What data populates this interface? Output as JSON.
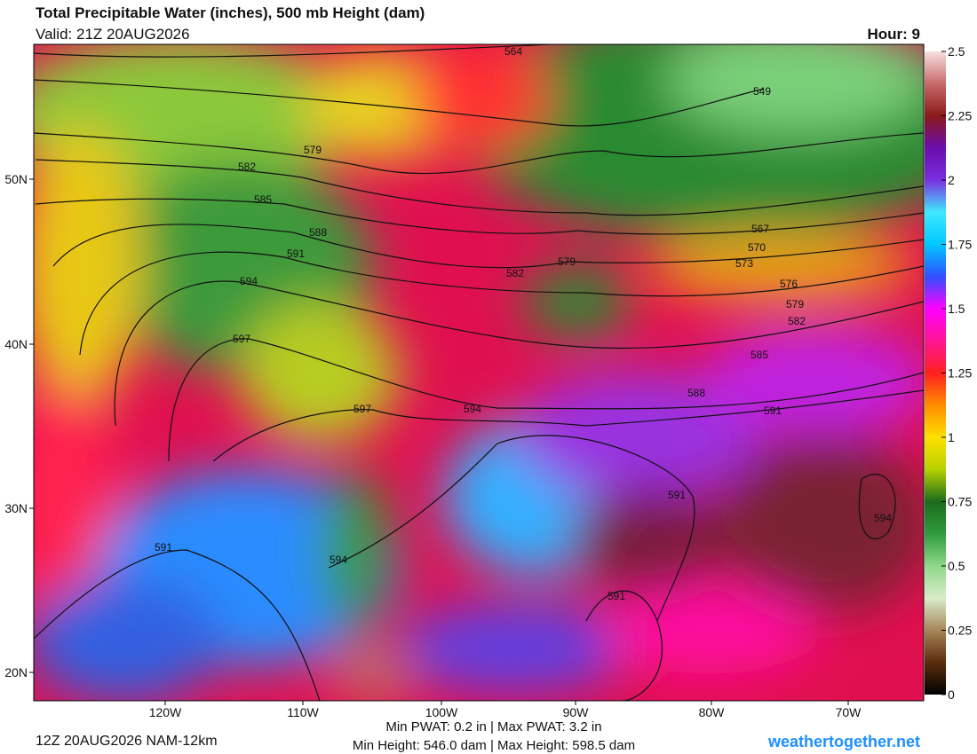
{
  "header": {
    "title": "Total Precipitable Water (inches), 500 mb Height (dam)",
    "valid": "Valid: 21Z 20AUG2026",
    "hour": "Hour: 9"
  },
  "colorbar": {
    "range": [
      0,
      2.5
    ],
    "ticks": [
      0,
      0.25,
      0.5,
      0.75,
      1,
      1.25,
      1.5,
      1.75,
      2,
      2.25,
      2.5
    ],
    "colors": [
      "#000000",
      "#5a2d0c",
      "#a8865a",
      "#d8ecc8",
      "#8fd88a",
      "#2e9b3e",
      "#1d6b1d",
      "#b6d200",
      "#ffe000",
      "#ff8c00",
      "#ff2020",
      "#ff1493",
      "#ff00ff",
      "#3050ff",
      "#00c8ff",
      "#40e8ff",
      "#7a2fe0",
      "#6a0dad",
      "#8b1a1a",
      "#c86a6a",
      "#f8e0e0"
    ]
  },
  "map": {
    "lat_labels": [
      "50N",
      "40N",
      "30N",
      "20N"
    ],
    "lon_labels": [
      "120W",
      "110W",
      "100W",
      "90W",
      "80W",
      "70W"
    ],
    "contour_labels": [
      "564",
      "549",
      "579",
      "582",
      "585",
      "588",
      "591",
      "594",
      "597",
      "597",
      "594",
      "582",
      "579",
      "567",
      "570",
      "573",
      "576",
      "579",
      "582",
      "585",
      "588",
      "591",
      "591",
      "594",
      "594",
      "591",
      "591"
    ]
  },
  "footer": {
    "run": "12Z 20AUG2026 NAM-12km",
    "pwat": "Min PWAT:   0.2 in | Max PWAT:   3.2 in",
    "height": "Min Height: 546.0 dam | Max Height: 598.5 dam",
    "site": "weathertogether.net"
  }
}
